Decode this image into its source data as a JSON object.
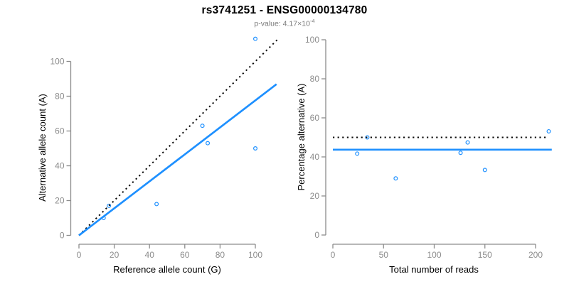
{
  "header": {
    "title": "rs3741251 - ENSG00000134780",
    "subtitle": {
      "prefix": "p-value: 4.17×10",
      "exponent": "-4"
    }
  },
  "style": {
    "background": "#FFFFFF",
    "accent_blue": "#1E90FF",
    "dotted_line_color": "#0a0a0a",
    "axis_color": "#8c8c8c",
    "tick_label_color": "#8c8c8c",
    "text_color": "#000000",
    "subtitle_color": "#7a7a7a"
  },
  "chart_data": [
    {
      "name": "allele-count-scatter",
      "type": "scatter",
      "xlabel": "Reference allele count (G)",
      "ylabel": "Alternative allele count (A)",
      "xticks": [
        0,
        20,
        40,
        60,
        80,
        100
      ],
      "yticks": [
        0,
        20,
        40,
        60,
        80,
        100
      ],
      "xlim": [
        0,
        110
      ],
      "ylim": [
        0,
        113
      ],
      "grid": false,
      "legend": "none",
      "points": [
        {
          "x": 14,
          "y": 10
        },
        {
          "x": 17,
          "y": 17
        },
        {
          "x": 44,
          "y": 18
        },
        {
          "x": 73,
          "y": 53
        },
        {
          "x": 70,
          "y": 63
        },
        {
          "x": 100,
          "y": 50
        },
        {
          "x": 100,
          "y": 113
        }
      ],
      "lines": [
        {
          "name": "identity-line",
          "style": "dotted",
          "color_key": "dotted_line_color",
          "x1": 0,
          "y1": 0,
          "x2": 113,
          "y2": 113
        },
        {
          "name": "regression-line",
          "style": "solid",
          "color_key": "accent_blue",
          "x1": 0,
          "y1": 0,
          "x2": 112,
          "y2": 86.9
        }
      ]
    },
    {
      "name": "reads-percentage-scatter",
      "type": "scatter",
      "xlabel": "Total number of reads",
      "ylabel": "Percentage alternative (A)",
      "xticks": [
        0,
        50,
        100,
        150,
        200
      ],
      "yticks": [
        0,
        20,
        40,
        60,
        80,
        100
      ],
      "xlim": [
        0,
        220
      ],
      "ylim": [
        0,
        100
      ],
      "grid": false,
      "legend": "none",
      "points": [
        {
          "x": 24,
          "y": 41.7
        },
        {
          "x": 34,
          "y": 50
        },
        {
          "x": 62,
          "y": 29
        },
        {
          "x": 126,
          "y": 42.1
        },
        {
          "x": 133,
          "y": 47.4
        },
        {
          "x": 150,
          "y": 33.3
        },
        {
          "x": 213,
          "y": 53.1
        }
      ],
      "lines": [
        {
          "name": "expected-50pct-line",
          "style": "dotted",
          "color_key": "dotted_line_color",
          "x1": 0,
          "y1": 50,
          "x2": 211,
          "y2": 50
        },
        {
          "name": "mean-percentage-line",
          "style": "solid",
          "color_key": "accent_blue",
          "x1": 0,
          "y1": 43.7,
          "x2": 216,
          "y2": 43.7
        }
      ]
    }
  ]
}
